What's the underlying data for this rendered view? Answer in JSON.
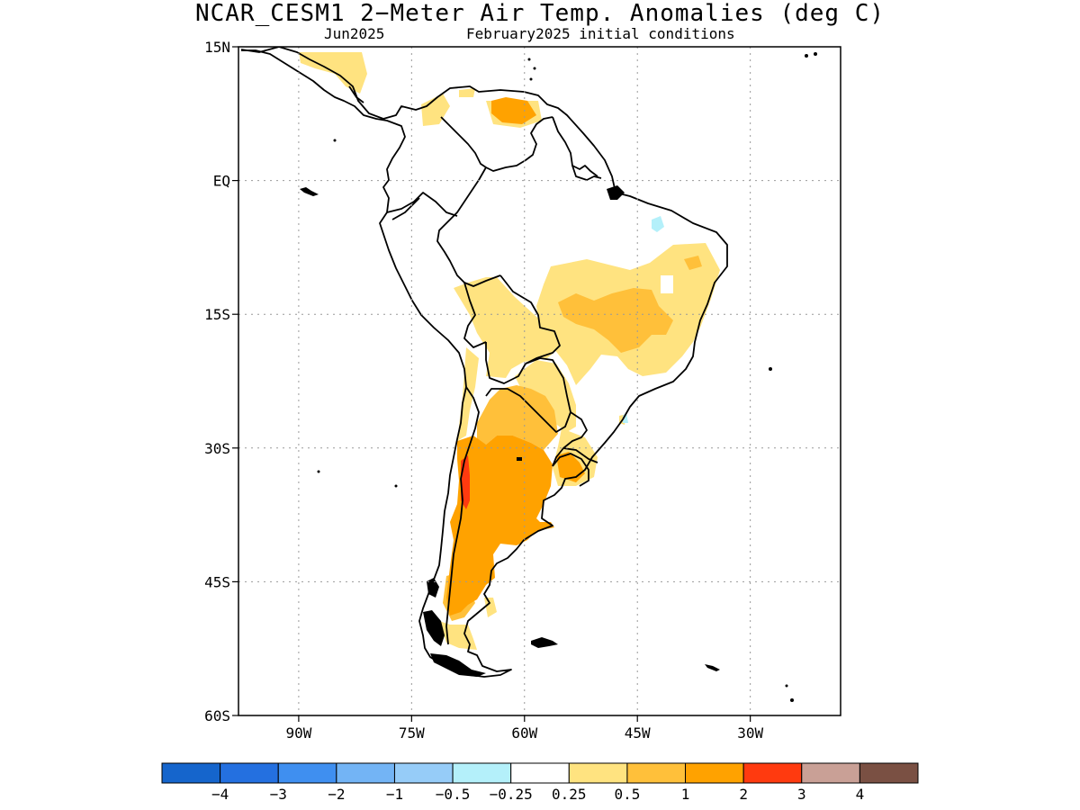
{
  "title": "NCAR_CESM1 2−Meter Air Temp. Anomalies (deg C)",
  "subtitle_left": "Jun2025",
  "subtitle_right": "February2025 initial conditions",
  "map": {
    "region": "South America",
    "lon_range": [
      -98,
      -18
    ],
    "lat_range": [
      -60,
      15
    ],
    "grid": true,
    "lat_ticks": [
      "15N",
      "EQ",
      "15S",
      "30S",
      "45S",
      "60S"
    ],
    "lat_tick_values": [
      15,
      0,
      -15,
      -30,
      -45,
      -60
    ],
    "lon_ticks": [
      "90W",
      "75W",
      "60W",
      "45W",
      "30W"
    ],
    "lon_tick_values": [
      -90,
      -75,
      -60,
      -45,
      -30
    ]
  },
  "colorbar": {
    "labels": [
      "−4",
      "−3",
      "−2",
      "−1",
      "−0.5",
      "−0.25",
      "0.25",
      "0.5",
      "1",
      "2",
      "3",
      "4"
    ],
    "colors": [
      "#1565cc",
      "#2470e0",
      "#3f8ff0",
      "#73b4f5",
      "#96ccf8",
      "#b4f0fa",
      "#ffffff",
      "#ffe380",
      "#ffc03a",
      "#ffa200",
      "#ff3a0f",
      "#c9a096",
      "#7a5043"
    ]
  },
  "anomaly_regions": [
    {
      "label": "Argentina central",
      "level": "1 to 2",
      "color": "#ffa200"
    },
    {
      "label": "Andes (Chile/Argentina border)",
      "level": "2 to 3",
      "color": "#ff3a0f"
    },
    {
      "label": "Eastern Brazil highlands",
      "level": "0.5 to 1",
      "color": "#ffc03a"
    },
    {
      "label": "Bolivia / Paraguay / Brazil",
      "level": "0.25 to 0.5",
      "color": "#ffe380"
    },
    {
      "label": "Venezuela coast",
      "level": "1 to 2",
      "color": "#ffa200"
    },
    {
      "label": "NE Brazil coast",
      "level": "-0.5 to -0.25",
      "color": "#b4f0fa"
    }
  ]
}
